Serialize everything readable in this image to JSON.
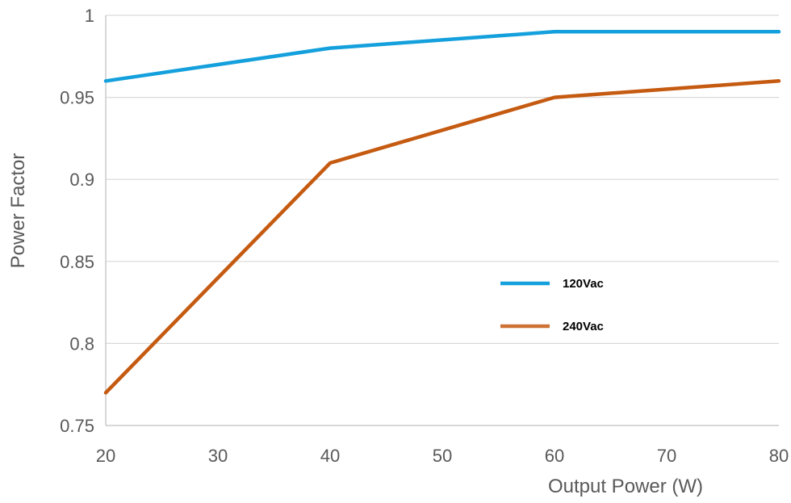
{
  "chart_data": {
    "type": "line",
    "title": "",
    "xlabel": "Output Power (W)",
    "ylabel": "Power Factor",
    "xlim": [
      20,
      80
    ],
    "ylim": [
      0.75,
      1
    ],
    "x_ticks": [
      "20",
      "30",
      "40",
      "50",
      "60",
      "70",
      "80"
    ],
    "y_ticks": [
      "0.75",
      "0.8",
      "0.85",
      "0.9",
      "0.95",
      "1"
    ],
    "grid": true,
    "legend_position": "center-right",
    "x": [
      20,
      40,
      60,
      80
    ],
    "series": [
      {
        "name": "120Vac",
        "color": "#14a0dc",
        "values": [
          0.96,
          0.98,
          0.99,
          0.99
        ]
      },
      {
        "name": "240Vac",
        "color": "#c55a11",
        "values": [
          0.77,
          0.91,
          0.95,
          0.96
        ]
      }
    ]
  }
}
